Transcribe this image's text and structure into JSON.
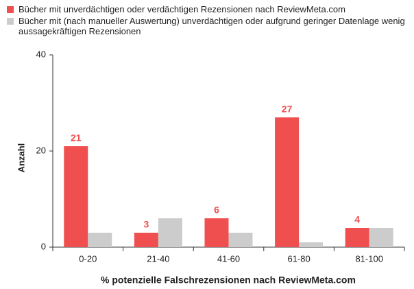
{
  "chart_data": {
    "type": "bar",
    "categories": [
      "0-20",
      "21-40",
      "41-60",
      "61-80",
      "81-100"
    ],
    "series": [
      {
        "name": "Bücher mit unverdächtigen oder verdächtigen Rezensionen nach ReviewMeta.com",
        "color": "#ef4f4f",
        "values": [
          21,
          3,
          6,
          27,
          4
        ],
        "show_values": true
      },
      {
        "name": "Bücher mit (nach manueller Auswertung) unverdächtigen oder aufgrund geringer Datenlage wenig aussagekräftigen Rezensionen",
        "color": "#cccccc",
        "values": [
          3,
          6,
          3,
          1,
          4
        ],
        "show_values": false
      }
    ],
    "ylim": [
      0,
      40
    ],
    "yticks": [
      0,
      20,
      40
    ],
    "y_label": "Anzahl",
    "x_label": "% potenzielle Falschrezensionen nach ReviewMeta.com",
    "grid": false,
    "legend": "top"
  }
}
